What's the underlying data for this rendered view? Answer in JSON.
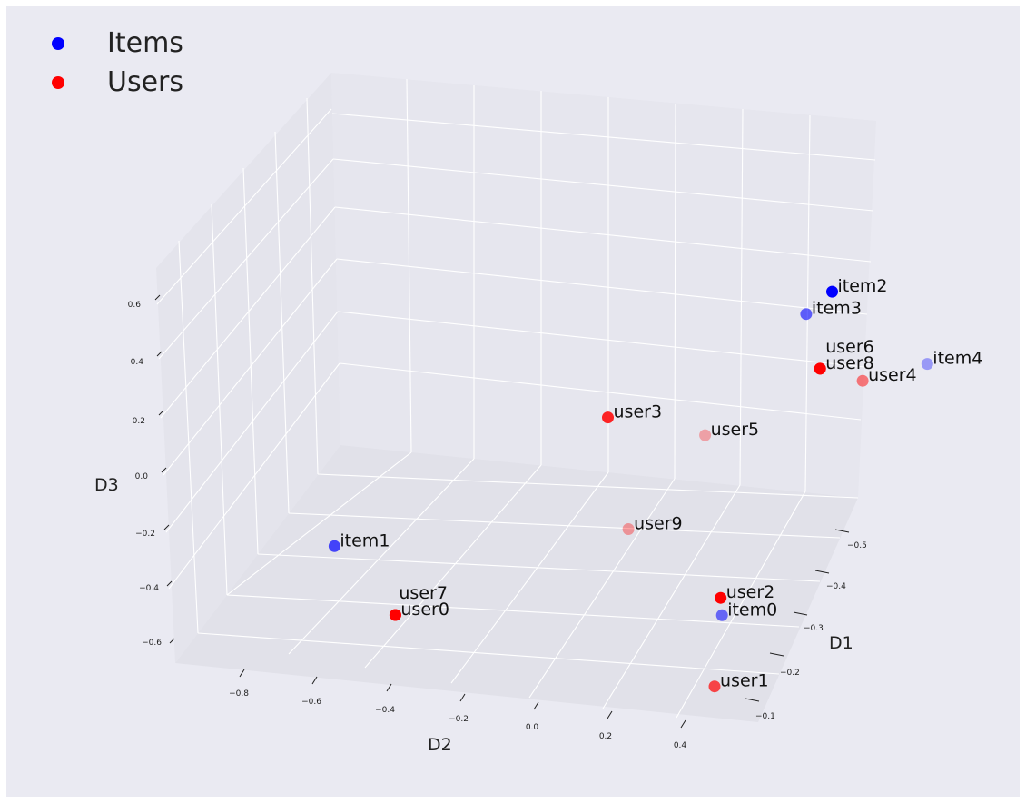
{
  "chart_data": {
    "type": "scatter",
    "title": "",
    "xlabel": "D1",
    "ylabel": "D2",
    "zlabel": "D3",
    "legend": {
      "placement": "top-left",
      "entries": [
        {
          "label": "Items",
          "color": "#0000ff"
        },
        {
          "label": "Users",
          "color": "#ff0000"
        }
      ]
    },
    "ticks": {
      "D1": [
        "−0.5",
        "−0.4",
        "−0.3",
        "−0.2",
        "−0.1"
      ],
      "D2": [
        "−0.8",
        "−0.6",
        "−0.4",
        "−0.2",
        "0.0",
        "0.2",
        "0.4"
      ],
      "D3": [
        "0.6",
        "0.4",
        "0.2",
        "0.0",
        "−0.2",
        "−0.4",
        "−0.6"
      ]
    },
    "series": [
      {
        "name": "Items",
        "color": "#0000ff",
        "points": [
          {
            "label": "item0",
            "x": -0.18,
            "y": 0.33,
            "z": -0.33,
            "alpha": 0.55
          },
          {
            "label": "item1",
            "x": -0.1,
            "y": -0.82,
            "z": 0.1,
            "alpha": 0.7
          },
          {
            "label": "item2",
            "x": -0.5,
            "y": 0.1,
            "z": 0.85,
            "alpha": 1.0
          },
          {
            "label": "item3",
            "x": -0.48,
            "y": 0.07,
            "z": 0.75,
            "alpha": 0.6
          },
          {
            "label": "item4",
            "x": -0.55,
            "y": 0.5,
            "z": 0.3,
            "alpha": 0.35
          }
        ]
      },
      {
        "name": "Users",
        "color": "#ff0000",
        "points": [
          {
            "label": "user0",
            "x": -0.05,
            "y": -0.55,
            "z": -0.15,
            "alpha": 1.0
          },
          {
            "label": "user1",
            "x": -0.1,
            "y": 0.42,
            "z": -0.55,
            "alpha": 0.7
          },
          {
            "label": "user2",
            "x": -0.2,
            "y": 0.3,
            "z": -0.28,
            "alpha": 1.0
          },
          {
            "label": "user3",
            "x": -0.3,
            "y": -0.3,
            "z": 0.5,
            "alpha": 0.85
          },
          {
            "label": "user4",
            "x": -0.5,
            "y": 0.35,
            "z": 0.3,
            "alpha": 0.5
          },
          {
            "label": "user5",
            "x": -0.35,
            "y": 0.0,
            "z": 0.3,
            "alpha": 0.3
          },
          {
            "label": "user6",
            "x": -0.45,
            "y": 0.2,
            "z": 0.5,
            "alpha": 1.0
          },
          {
            "label": "user7",
            "x": -0.05,
            "y": -0.55,
            "z": -0.15,
            "alpha": 1.0
          },
          {
            "label": "user8",
            "x": -0.45,
            "y": 0.2,
            "z": 0.5,
            "alpha": 1.0
          },
          {
            "label": "user9",
            "x": -0.25,
            "y": -0.05,
            "z": -0.05,
            "alpha": 0.35
          }
        ]
      }
    ]
  }
}
